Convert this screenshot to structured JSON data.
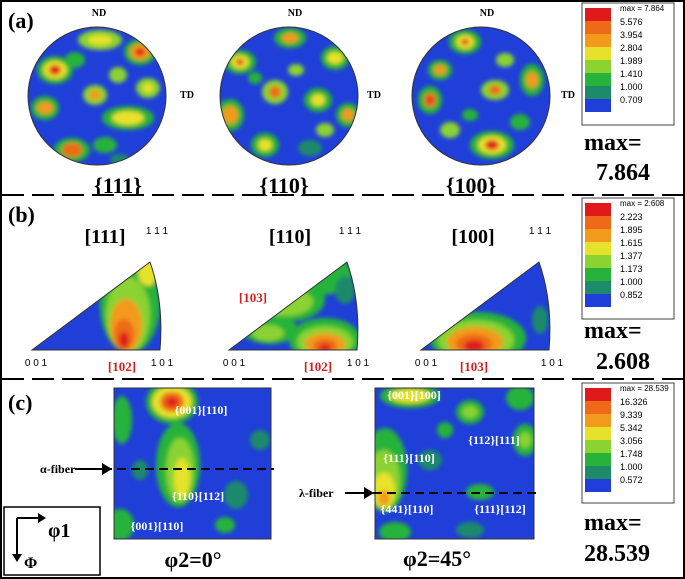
{
  "colors": {
    "blue": "#1f3fd8",
    "teal": "#1d8a6a",
    "green": "#27b33b",
    "lime": "#8ad331",
    "yellow": "#e6e22c",
    "orange": "#f39a1d",
    "deeporange": "#ee6a19",
    "red": "#e01a1a",
    "darkred": "#c00000",
    "annot_red": "#d3201f",
    "black": "#000000",
    "white": "#ffffff"
  },
  "panels": {
    "a": {
      "label": "(a)",
      "axis_nd": "ND",
      "axis_td": "TD",
      "figures": [
        {
          "caption": "{111}"
        },
        {
          "caption": "{110}"
        },
        {
          "caption": "{100}"
        }
      ],
      "legend": {
        "header": "max = 7.864",
        "values": [
          "5.576",
          "3.954",
          "2.804",
          "1.989",
          "1.410",
          "1.000",
          "0.709"
        ]
      },
      "max_label": "max=",
      "max_value": "7.864"
    },
    "b": {
      "label": "(b)",
      "figures": [
        {
          "title": "[111]",
          "corner_top": "1 1 1",
          "corner_left": "0 0 1",
          "corner_right": "1 0 1",
          "annotations": [
            "[102]"
          ]
        },
        {
          "title": "[110]",
          "corner_top": "1 1 1",
          "corner_left": "0 0 1",
          "corner_right": "1 0 1",
          "annotations": [
            "[103]",
            "[102]"
          ]
        },
        {
          "title": "[100]",
          "corner_top": "1 1 1",
          "corner_left": "0 0 1",
          "corner_right": "1 0 1",
          "annotations": [
            "[103]"
          ]
        }
      ],
      "legend": {
        "header": "max = 2.608",
        "values": [
          "2.223",
          "1.895",
          "1.615",
          "1.377",
          "1.173",
          "1.000",
          "0.852"
        ]
      },
      "max_label": "max=",
      "max_value": "2.608"
    },
    "c": {
      "label": "(c)",
      "figures": [
        {
          "caption": "φ2=0°",
          "fiber": "α-fiber",
          "annotations": [
            "{001}[110]",
            "{110}[112]",
            "{001}[110]"
          ]
        },
        {
          "caption": "φ2=45°",
          "fiber": "λ-fiber",
          "annotations": [
            "{001}[100]",
            "{112}[111]",
            "{111}[110]",
            "{441}[110]",
            "{111}[112]"
          ]
        }
      ],
      "axes": {
        "phi1": "φ1",
        "Phi": "Φ"
      },
      "legend": {
        "header": "max = 28.539",
        "values": [
          "16.326",
          "9.339",
          "5.342",
          "3.056",
          "1.748",
          "1.000",
          "0.572"
        ]
      },
      "max_label": "max=",
      "max_value": "28.539"
    }
  }
}
